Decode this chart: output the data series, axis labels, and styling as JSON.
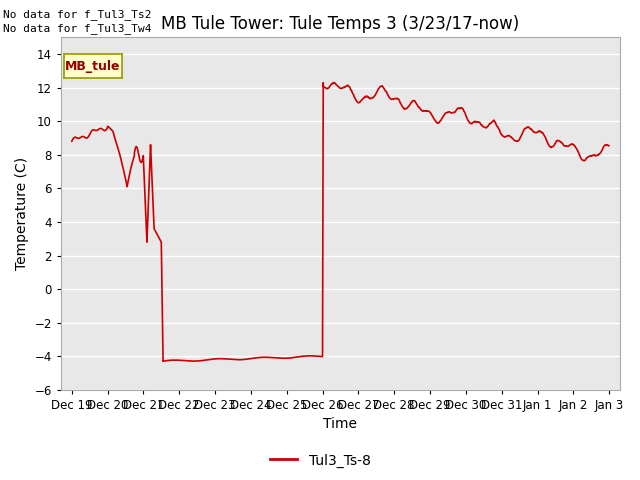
{
  "title": "MB Tule Tower: Tule Temps 3 (3/23/17-now)",
  "ylabel": "Temperature (C)",
  "xlabel": "Time",
  "ylim": [
    -6,
    15
  ],
  "yticks": [
    -6,
    -4,
    -2,
    0,
    2,
    4,
    6,
    8,
    10,
    12,
    14
  ],
  "bg_color": "#ffffff",
  "plot_bg_color": "#e8e8e8",
  "line_color": "#cc0000",
  "legend_label": "Tul3_Ts-8",
  "no_data_text1": "No data for f_Tul3_Ts2",
  "no_data_text2": "No data for f_Tul3_Tw4",
  "inset_label": "MB_tule",
  "x_tick_labels": [
    "Dec 19",
    "Dec 20",
    "Dec 21",
    "Dec 22",
    "Dec 23",
    "Dec 24",
    "Dec 25",
    "Dec 26",
    "Dec 27",
    "Dec 28",
    "Dec 29",
    "Dec 30",
    "Dec 31",
    "Jan 1",
    "Jan 2",
    "Jan 3"
  ],
  "title_fontsize": 12,
  "axis_label_fontsize": 10,
  "tick_fontsize": 8.5
}
